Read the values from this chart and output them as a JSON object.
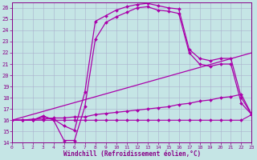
{
  "xlabel": "Windchill (Refroidissement éolien,°C)",
  "xlim": [
    0,
    23
  ],
  "ylim": [
    14,
    26.5
  ],
  "xticks": [
    0,
    1,
    2,
    3,
    4,
    5,
    6,
    7,
    8,
    9,
    10,
    11,
    12,
    13,
    14,
    15,
    16,
    17,
    18,
    19,
    20,
    21,
    22,
    23
  ],
  "yticks": [
    14,
    15,
    16,
    17,
    18,
    19,
    20,
    21,
    22,
    23,
    24,
    25,
    26
  ],
  "bg_color": "#c5e5e5",
  "grid_color": "#aab0cc",
  "line_color": "#aa00aa",
  "line_color_dark": "#880088",
  "series": {
    "arch1": {
      "x": [
        0,
        1,
        2,
        3,
        4,
        5,
        6,
        7,
        8,
        9,
        10,
        11,
        12,
        13,
        14,
        15,
        16,
        17,
        18,
        19,
        20,
        21,
        22,
        23
      ],
      "y": [
        16.0,
        16.0,
        16.0,
        16.3,
        16.1,
        15.5,
        15.1,
        18.5,
        24.8,
        25.3,
        25.8,
        26.1,
        26.3,
        26.4,
        26.2,
        26.0,
        25.9,
        22.3,
        21.5,
        21.3,
        21.5,
        21.5,
        18.0,
        16.5
      ]
    },
    "arch2": {
      "x": [
        0,
        1,
        2,
        3,
        4,
        5,
        6,
        7,
        8,
        9,
        10,
        11,
        12,
        13,
        14,
        15,
        16,
        17,
        18,
        19,
        20,
        21,
        22,
        23
      ],
      "y": [
        16.0,
        16.0,
        16.0,
        16.4,
        16.0,
        14.2,
        14.2,
        17.2,
        23.2,
        24.7,
        25.2,
        25.6,
        26.0,
        26.1,
        25.8,
        25.7,
        25.5,
        22.0,
        21.0,
        20.8,
        21.0,
        21.0,
        17.5,
        16.5
      ]
    },
    "diag1": {
      "x": [
        0,
        23
      ],
      "y": [
        16.0,
        22.0
      ]
    },
    "diag2": {
      "x": [
        0,
        1,
        2,
        3,
        4,
        5,
        6,
        7,
        8,
        9,
        10,
        11,
        12,
        13,
        14,
        15,
        16,
        17,
        18,
        19,
        20,
        21,
        22,
        23
      ],
      "y": [
        16.0,
        16.0,
        16.1,
        16.1,
        16.2,
        16.2,
        16.3,
        16.3,
        16.5,
        16.6,
        16.7,
        16.8,
        16.9,
        17.0,
        17.1,
        17.2,
        17.4,
        17.5,
        17.7,
        17.8,
        18.0,
        18.1,
        18.3,
        16.5
      ]
    },
    "flat": {
      "x": [
        0,
        1,
        2,
        3,
        4,
        5,
        6,
        7,
        8,
        9,
        10,
        11,
        12,
        13,
        14,
        15,
        16,
        17,
        18,
        19,
        20,
        21,
        22,
        23
      ],
      "y": [
        16.0,
        16.0,
        16.0,
        16.0,
        16.0,
        16.0,
        16.0,
        16.0,
        16.0,
        16.0,
        16.0,
        16.0,
        16.0,
        16.0,
        16.0,
        16.0,
        16.0,
        16.0,
        16.0,
        16.0,
        16.0,
        16.0,
        16.0,
        16.5
      ]
    }
  }
}
